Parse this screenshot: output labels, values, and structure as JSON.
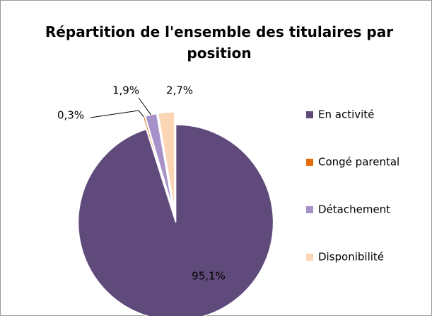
{
  "chart_data": {
    "type": "pie",
    "title": "Répartition de l'ensemble des titulaires par position",
    "categories": [
      "En activité",
      "Congé parental",
      "Détachement",
      "Disponibilité"
    ],
    "values": [
      95.1,
      0.3,
      1.9,
      2.7
    ],
    "value_labels": [
      "95,1%",
      "0,3%",
      "1,9%",
      "2,7%"
    ],
    "colors": [
      "#604a7b",
      "#e46c0a",
      "#a692c8",
      "#fcd5b5"
    ],
    "legend": "right"
  }
}
